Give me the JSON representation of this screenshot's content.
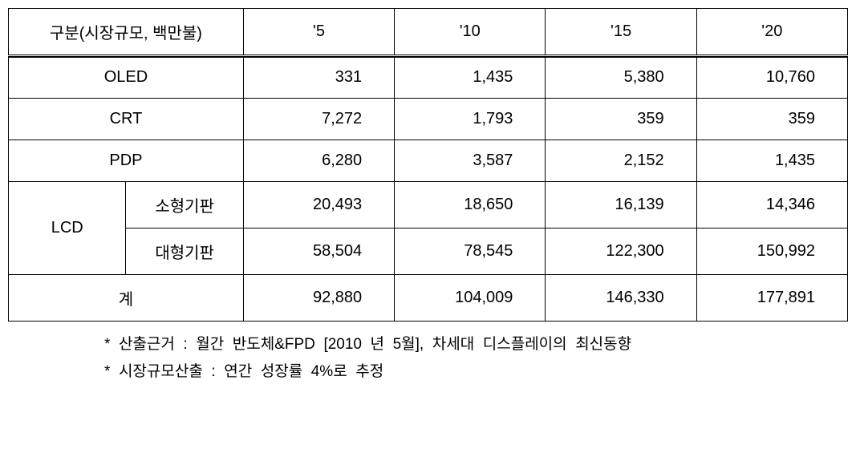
{
  "table": {
    "columns": {
      "category": "구분(시장규모, 백만불)",
      "y05": "'5",
      "y10": "'10",
      "y15": "'15",
      "y20": "'20"
    },
    "rows": {
      "oled": {
        "label": "OLED",
        "y05": "331",
        "y10": "1,435",
        "y15": "5,380",
        "y20": "10,760"
      },
      "crt": {
        "label": "CRT",
        "y05": "7,272",
        "y10": "1,793",
        "y15": "359",
        "y20": "359"
      },
      "pdp": {
        "label": "PDP",
        "y05": "6,280",
        "y10": "3,587",
        "y15": "2,152",
        "y20": "1,435"
      },
      "lcd": {
        "group_label": "LCD",
        "small": {
          "label": "소형기판",
          "y05": "20,493",
          "y10": "18,650",
          "y15": "16,139",
          "y20": "14,346"
        },
        "large": {
          "label": "대형기판",
          "y05": "58,504",
          "y10": "78,545",
          "y15": "122,300",
          "y20": "150,992"
        }
      },
      "total": {
        "label": "계",
        "y05": "92,880",
        "y10": "104,009",
        "y15": "146,330",
        "y20": "177,891"
      }
    }
  },
  "footnotes": {
    "line1": "*  산출근거  :  월간  반도체&FPD  [2010  년  5월],  차세대  디스플레이의  최신동향",
    "line2": "*  시장규모산출  :  연간  성장률  4%로  추정"
  },
  "styling": {
    "font_family": "Malgun Gothic",
    "background_color": "#ffffff",
    "border_color": "#000000",
    "header_font_size": 20,
    "cell_font_size": 20,
    "footnote_font_size": 19,
    "value_alignment": "right",
    "label_alignment": "center"
  }
}
